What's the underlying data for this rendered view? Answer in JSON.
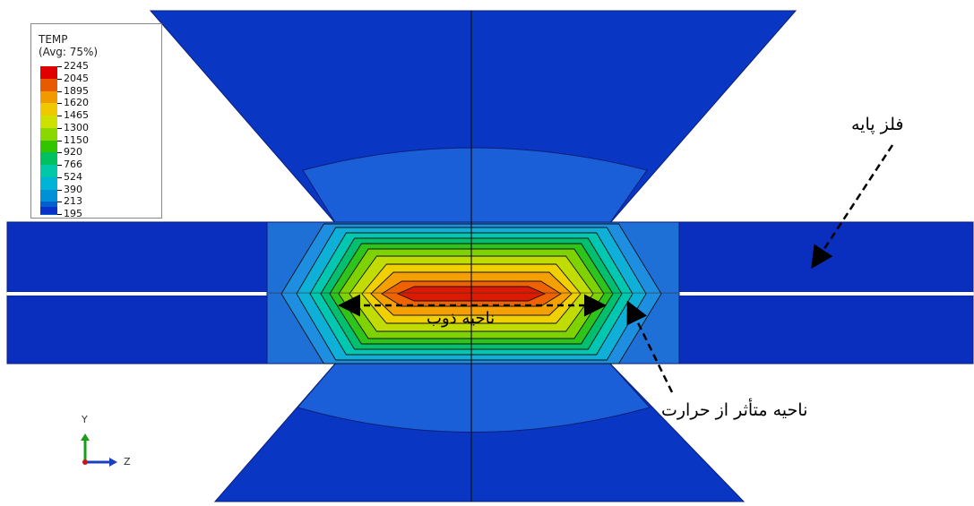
{
  "legend": {
    "title_line1": "TEMP",
    "title_line2": "(Avg: 75%)",
    "values": [
      "2245",
      "2045",
      "1895",
      "1620",
      "1465",
      "1300",
      "1150",
      "920",
      "766",
      "524",
      "390",
      "213",
      "195"
    ],
    "colors": [
      "#e00000",
      "#e85a00",
      "#f09a00",
      "#f0c800",
      "#cde000",
      "#8ad800",
      "#33c400",
      "#00c060",
      "#00c8a8",
      "#00b4d8",
      "#0090d8",
      "#0060d0",
      "#0a32c8"
    ]
  },
  "annotations": {
    "base_metal": "فلز پایه",
    "fusion_zone": "ناحیه ذوب",
    "haz": "ناحیه متأثر از حرارت"
  },
  "axes": {
    "y_label": "Y",
    "z_label": "Z"
  },
  "colors": {
    "base_plate": "#0a2fbf",
    "electrode": "#0a36c4",
    "electrode_tip": "#1a5fd8",
    "haz_outer": "#1e6fd6"
  }
}
